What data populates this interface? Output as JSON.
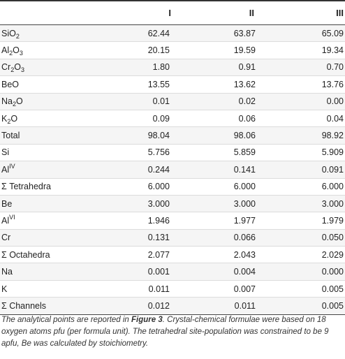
{
  "table": {
    "headers": [
      "",
      "I",
      "II",
      "III"
    ],
    "rows": [
      {
        "label": "SiO",
        "sub": "2",
        "label_after": "",
        "values": [
          "62.44",
          "63.87",
          "65.09"
        ]
      },
      {
        "label": "Al",
        "sub": "2",
        "label_after": "O",
        "sub2": "3",
        "values": [
          "20.15",
          "19.59",
          "19.34"
        ]
      },
      {
        "label": "Cr",
        "sub": "2",
        "label_after": "O",
        "sub2": "3",
        "values": [
          "1.80",
          "0.91",
          "0.70"
        ]
      },
      {
        "label": "BeO",
        "values": [
          "13.55",
          "13.62",
          "13.76"
        ]
      },
      {
        "label": "Na",
        "sub": "2",
        "label_after": "O",
        "values": [
          "0.01",
          "0.02",
          "0.00"
        ]
      },
      {
        "label": "K",
        "sub": "2",
        "label_after": "O",
        "values": [
          "0.09",
          "0.06",
          "0.04"
        ]
      },
      {
        "label": "Total",
        "values": [
          "98.04",
          "98.06",
          "98.92"
        ]
      },
      {
        "label": "Si",
        "values": [
          "5.756",
          "5.859",
          "5.909"
        ]
      },
      {
        "label": "Al",
        "sup": "IV",
        "values": [
          "0.244",
          "0.141",
          "0.091"
        ]
      },
      {
        "label": "Σ Tetrahedra",
        "values": [
          "6.000",
          "6.000",
          "6.000"
        ]
      },
      {
        "label": "Be",
        "values": [
          "3.000",
          "3.000",
          "3.000"
        ]
      },
      {
        "label": "Al",
        "sup": "VI",
        "values": [
          "1.946",
          "1.977",
          "1.979"
        ]
      },
      {
        "label": "Cr",
        "values": [
          "0.131",
          "0.066",
          "0.050"
        ]
      },
      {
        "label": "Σ Octahedra",
        "values": [
          "2.077",
          "2.043",
          "2.029"
        ]
      },
      {
        "label": "Na",
        "values": [
          "0.001",
          "0.004",
          "0.000"
        ]
      },
      {
        "label": "K",
        "values": [
          "0.011",
          "0.007",
          "0.005"
        ]
      },
      {
        "label": "Σ Channels",
        "values": [
          "0.012",
          "0.011",
          "0.005"
        ]
      }
    ]
  },
  "footnote": {
    "part1": "The analytical points are reported in ",
    "figure_ref": "Figure 3",
    "part2": ". Crystal-chemical formulae were based on 18 oxygen atoms pfu (per formula unit). The tetrahedral site-population was constrained to be 9 apfu, Be was calculated by stoichiometry."
  }
}
